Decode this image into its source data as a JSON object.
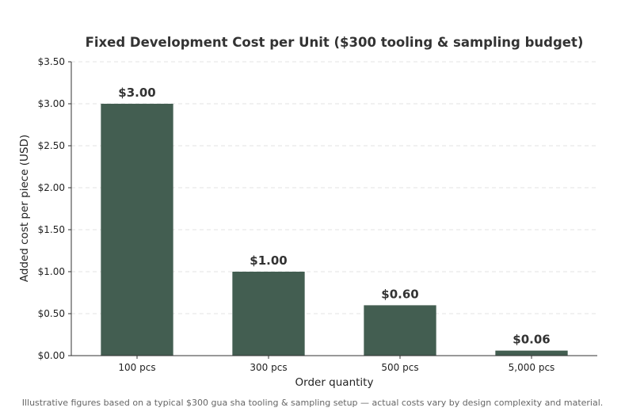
{
  "chart_data": {
    "type": "bar",
    "title": "Fixed Development Cost per Unit ($300 tooling & sampling budget)",
    "xlabel": "Order quantity",
    "ylabel": "Added cost per piece (USD)",
    "categories": [
      "100 pcs",
      "300 pcs",
      "500 pcs",
      "5,000 pcs"
    ],
    "values": [
      3.0,
      1.0,
      0.6,
      0.06
    ],
    "data_labels": [
      "$3.00",
      "$1.00",
      "$0.60",
      "$0.06"
    ],
    "ylim": [
      0,
      3.5
    ],
    "yticks": [
      0,
      0.5,
      1.0,
      1.5,
      2.0,
      2.5,
      3.0,
      3.5
    ],
    "ytick_labels": [
      "$0.00",
      "$0.50",
      "$1.00",
      "$1.50",
      "$2.00",
      "$2.50",
      "$3.00",
      "$3.50"
    ],
    "grid": "horizontal-dashed",
    "bar_color": "#435e51"
  },
  "caption": "Illustrative figures based on a typical $300 gua sha tooling & sampling setup — actual costs vary by design complexity and material."
}
